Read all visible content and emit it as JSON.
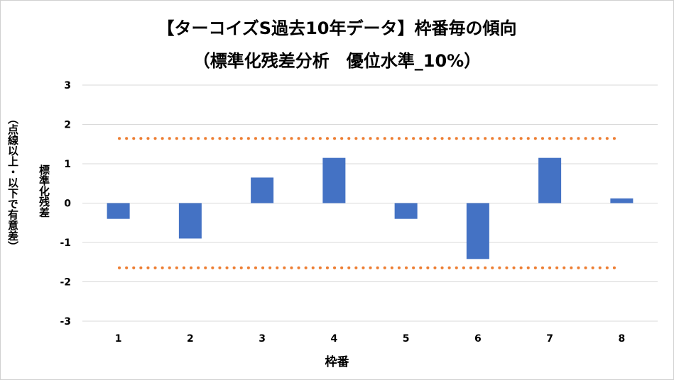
{
  "chart_data": {
    "type": "bar",
    "title": "【ターコイズS過去10年データ】枠番毎の傾向",
    "subtitle": "（標準化残差分析　優位水準_10%）",
    "xlabel": "枠番",
    "ylabel": "標準化残差",
    "ylabel_note": "（点線以上・以下で有意差）",
    "categories": [
      "1",
      "2",
      "3",
      "4",
      "5",
      "6",
      "7",
      "8"
    ],
    "values": [
      -0.4,
      -0.9,
      0.65,
      1.15,
      -0.4,
      -1.42,
      1.15,
      0.12
    ],
    "ylim": [
      -3,
      3
    ],
    "yticks": [
      "3",
      "2",
      "1",
      "0",
      "-1",
      "-2",
      "-3"
    ],
    "threshold_upper": 1.645,
    "threshold_lower": -1.645,
    "grid": true,
    "bar_color": "#4472C4",
    "threshold_color": "#ED7D31",
    "grid_color": "#d9d9d9"
  }
}
